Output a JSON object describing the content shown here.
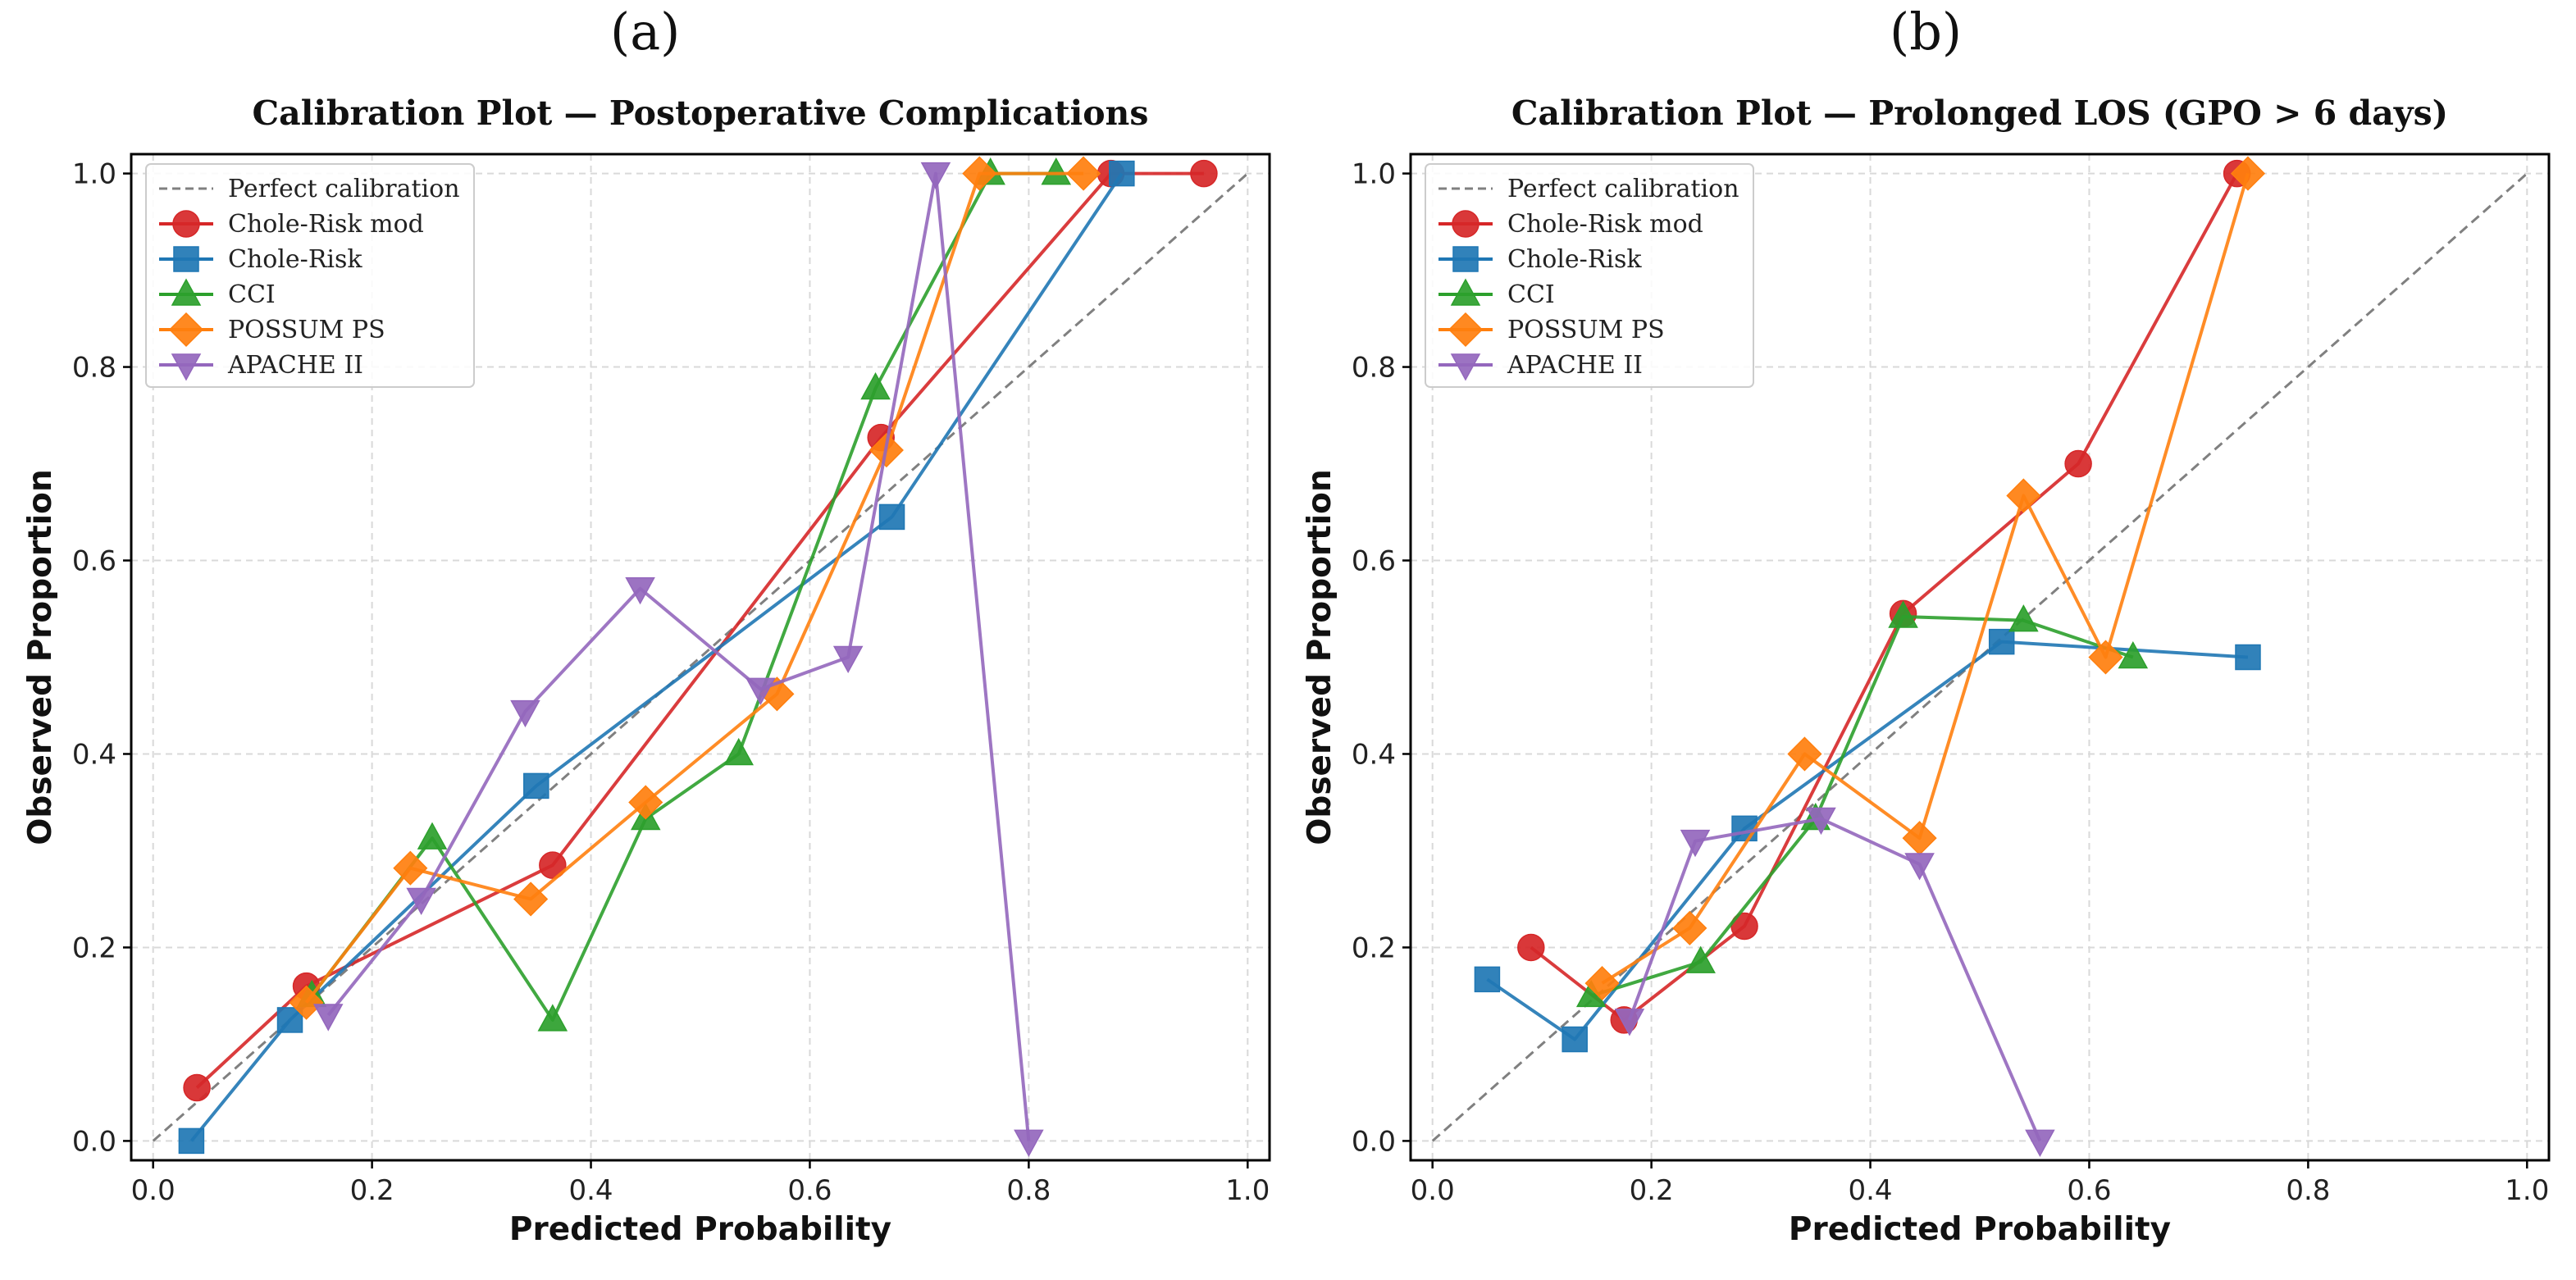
{
  "panels": [
    {
      "letter": "(a)",
      "chart": {
        "type": "line",
        "title": "Calibration Plot — Postoperative Complications",
        "xlabel": "Predicted Probability",
        "ylabel": "Observed Proportion",
        "xlim": [
          -0.02,
          1.02
        ],
        "ylim": [
          -0.02,
          1.02
        ],
        "xticks": [
          "0.0",
          "0.2",
          "0.4",
          "0.6",
          "0.8",
          "1.0"
        ],
        "yticks": [
          "0.0",
          "0.2",
          "0.4",
          "0.6",
          "0.8",
          "1.0"
        ],
        "grid": true,
        "legend_position": "top-left",
        "reference_line": {
          "name": "Perfect calibration",
          "x": [
            0,
            1
          ],
          "y": [
            0,
            1
          ],
          "color": "#808080",
          "style": "dashed"
        },
        "series": [
          {
            "name": "Chole-Risk mod",
            "color": "#d62728",
            "marker": "circle",
            "x": [
              0.04,
              0.14,
              0.365,
              0.665,
              0.875,
              0.96
            ],
            "y": [
              0.055,
              0.16,
              0.285,
              0.727,
              1.0,
              1.0
            ]
          },
          {
            "name": "Chole-Risk",
            "color": "#1f77b4",
            "marker": "square",
            "x": [
              0.035,
              0.125,
              0.35,
              0.675,
              0.885
            ],
            "y": [
              0.0,
              0.125,
              0.367,
              0.645,
              1.0
            ]
          },
          {
            "name": "CCI",
            "color": "#2ca02c",
            "marker": "triangle-up",
            "x": [
              0.145,
              0.255,
              0.365,
              0.45,
              0.535,
              0.66,
              0.765,
              0.825
            ],
            "y": [
              0.15,
              0.313,
              0.125,
              0.333,
              0.4,
              0.778,
              1.0,
              1.0
            ]
          },
          {
            "name": "POSSUM PS",
            "color": "#ff7f0e",
            "marker": "diamond",
            "x": [
              0.14,
              0.235,
              0.345,
              0.45,
              0.57,
              0.67,
              0.755,
              0.85
            ],
            "y": [
              0.143,
              0.282,
              0.25,
              0.35,
              0.462,
              0.714,
              1.0,
              1.0
            ]
          },
          {
            "name": "APACHE II",
            "color": "#9467bd",
            "marker": "triangle-down",
            "x": [
              0.16,
              0.245,
              0.34,
              0.445,
              0.555,
              0.635,
              0.715,
              0.8
            ],
            "y": [
              0.13,
              0.25,
              0.444,
              0.571,
              0.467,
              0.5,
              1.0,
              0.0
            ]
          }
        ]
      }
    },
    {
      "letter": "(b)",
      "chart": {
        "type": "line",
        "title": "Calibration Plot — Prolonged LOS (GPO > 6 days)",
        "xlabel": "Predicted Probability",
        "ylabel": "Observed Proportion",
        "xlim": [
          -0.02,
          1.02
        ],
        "ylim": [
          -0.02,
          1.02
        ],
        "xticks": [
          "0.0",
          "0.2",
          "0.4",
          "0.6",
          "0.8",
          "1.0"
        ],
        "yticks": [
          "0.0",
          "0.2",
          "0.4",
          "0.6",
          "0.8",
          "1.0"
        ],
        "grid": true,
        "legend_position": "top-left",
        "reference_line": {
          "name": "Perfect calibration",
          "x": [
            0,
            1
          ],
          "y": [
            0,
            1
          ],
          "color": "#808080",
          "style": "dashed"
        },
        "series": [
          {
            "name": "Chole-Risk mod",
            "color": "#d62728",
            "marker": "circle",
            "x": [
              0.09,
              0.175,
              0.285,
              0.43,
              0.59,
              0.735
            ],
            "y": [
              0.2,
              0.125,
              0.222,
              0.545,
              0.7,
              1.0
            ]
          },
          {
            "name": "Chole-Risk",
            "color": "#1f77b4",
            "marker": "square",
            "x": [
              0.05,
              0.13,
              0.285,
              0.52,
              0.745
            ],
            "y": [
              0.167,
              0.105,
              0.323,
              0.516,
              0.5
            ]
          },
          {
            "name": "CCI",
            "color": "#2ca02c",
            "marker": "triangle-up",
            "x": [
              0.145,
              0.245,
              0.35,
              0.43,
              0.54,
              0.64
            ],
            "y": [
              0.15,
              0.185,
              0.333,
              0.542,
              0.538,
              0.5
            ]
          },
          {
            "name": "POSSUM PS",
            "color": "#ff7f0e",
            "marker": "diamond",
            "x": [
              0.155,
              0.235,
              0.34,
              0.445,
              0.54,
              0.615,
              0.745
            ],
            "y": [
              0.163,
              0.22,
              0.4,
              0.313,
              0.667,
              0.5,
              1.0
            ]
          },
          {
            "name": "APACHE II",
            "color": "#9467bd",
            "marker": "triangle-down",
            "x": [
              0.18,
              0.24,
              0.355,
              0.445,
              0.555
            ],
            "y": [
              0.125,
              0.31,
              0.333,
              0.286,
              0.0
            ]
          }
        ]
      }
    }
  ]
}
